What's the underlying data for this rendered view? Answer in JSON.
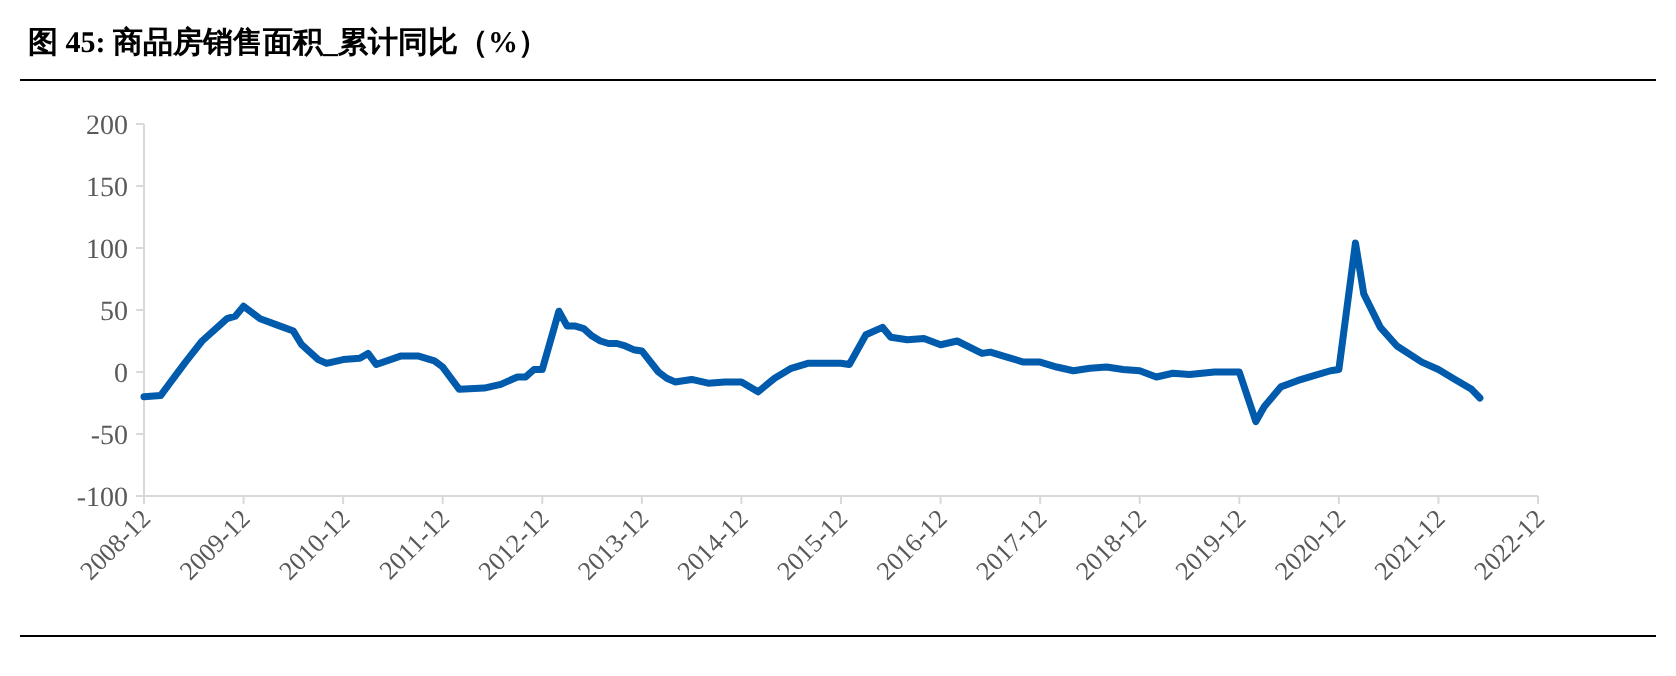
{
  "chart_data": {
    "type": "line",
    "title": "图 45: 商品房销售面积_累计同比（%）",
    "x": [
      "2008-12",
      "2009-02",
      "2009-03",
      "2009-05",
      "2009-07",
      "2009-09",
      "2009-10",
      "2009-11",
      "2009-12",
      "2010-02",
      "2010-04",
      "2010-06",
      "2010-07",
      "2010-09",
      "2010-10",
      "2010-12",
      "2011-02",
      "2011-03",
      "2011-04",
      "2011-07",
      "2011-09",
      "2011-11",
      "2011-12",
      "2012-02",
      "2012-05",
      "2012-07",
      "2012-09",
      "2012-10",
      "2012-11",
      "2012-12",
      "2013-02",
      "2013-03",
      "2013-04",
      "2013-05",
      "2013-06",
      "2013-07",
      "2013-08",
      "2013-09",
      "2013-10",
      "2013-11",
      "2013-12",
      "2014-02",
      "2014-03",
      "2014-04",
      "2014-05",
      "2014-06",
      "2014-08",
      "2014-10",
      "2014-12",
      "2015-02",
      "2015-04",
      "2015-06",
      "2015-08",
      "2015-10",
      "2015-12",
      "2016-01",
      "2016-03",
      "2016-05",
      "2016-06",
      "2016-08",
      "2016-10",
      "2016-12",
      "2017-02",
      "2017-05",
      "2017-06",
      "2017-08",
      "2017-10",
      "2017-12",
      "2018-02",
      "2018-04",
      "2018-06",
      "2018-08",
      "2018-10",
      "2018-12",
      "2019-02",
      "2019-04",
      "2019-06",
      "2019-09",
      "2019-12",
      "2020-02",
      "2020-03",
      "2020-05",
      "2020-07",
      "2020-09",
      "2020-11",
      "2020-12",
      "2021-02",
      "2021-03",
      "2021-05",
      "2021-07",
      "2021-10",
      "2021-12",
      "2022-02",
      "2022-04",
      "2022-05"
    ],
    "series": [
      {
        "color": "#005bac",
        "values": [
          -20,
          -19,
          -10,
          8,
          25,
          37,
          43,
          45,
          53,
          43,
          38,
          33,
          22,
          10,
          7,
          10,
          11,
          15,
          6,
          13,
          13,
          9,
          4,
          -14,
          -13,
          -10,
          -4,
          -4,
          2,
          2,
          49,
          37,
          37,
          35,
          29,
          25,
          23,
          23,
          21,
          18,
          17,
          0,
          -5,
          -8,
          -7,
          -6,
          -9,
          -8,
          -8,
          -16,
          -5,
          3,
          7,
          7,
          7,
          6,
          30,
          36,
          28,
          26,
          27,
          22,
          25,
          15,
          16,
          12,
          8,
          8,
          4,
          1,
          3,
          4,
          2,
          1,
          -4,
          -1,
          -2,
          0,
          0,
          -40,
          -28,
          -12,
          -7,
          -3,
          1,
          2,
          104,
          63,
          36,
          21,
          8,
          2,
          -6,
          -14,
          -21
        ]
      }
    ],
    "ylim": [
      -100,
      200
    ],
    "yticks": [
      -100,
      -50,
      0,
      50,
      100,
      150,
      200
    ],
    "xlim": [
      "2008-12",
      "2022-12"
    ],
    "xticks": [
      "2008-12",
      "2009-12",
      "2010-12",
      "2011-12",
      "2012-12",
      "2013-12",
      "2014-12",
      "2015-12",
      "2016-12",
      "2017-12",
      "2018-12",
      "2019-12",
      "2020-12",
      "2021-12",
      "2022-12"
    ],
    "grid": false,
    "line_style": "solid",
    "marker": "none"
  }
}
